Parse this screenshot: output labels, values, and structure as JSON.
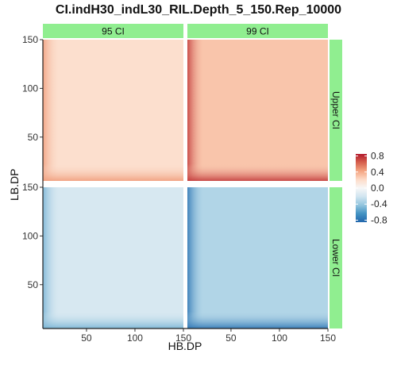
{
  "chart_data": {
    "type": "heatmap",
    "title": "CI.indH30_indL30_RIL.Depth_5_150.Rep_10000",
    "xlabel": "HB.DP",
    "ylabel": "LB.DP",
    "xlim": [
      5,
      150
    ],
    "ylim": [
      5,
      150
    ],
    "x_ticks": [
      "50",
      "100",
      "150"
    ],
    "y_ticks": [
      "50",
      "100",
      "150"
    ],
    "x_tick_values": [
      50,
      100,
      150
    ],
    "y_tick_values": [
      50,
      100,
      150
    ],
    "column_facets": [
      "95 CI",
      "99 CI"
    ],
    "row_facets": [
      "Upper CI",
      "Lower CI"
    ],
    "panels": [
      {
        "column": "95 CI",
        "row": "Upper CI",
        "value_at_max_depth": 0.18,
        "value_at_min_depth": 0.45
      },
      {
        "column": "99 CI",
        "row": "Upper CI",
        "value_at_max_depth": 0.3,
        "value_at_min_depth": 0.75
      },
      {
        "column": "95 CI",
        "row": "Lower CI",
        "value_at_max_depth": -0.18,
        "value_at_min_depth": -0.5
      },
      {
        "column": "99 CI",
        "row": "Lower CI",
        "value_at_max_depth": -0.32,
        "value_at_min_depth": -0.78
      }
    ],
    "legend": {
      "position": "right",
      "range": [
        -0.85,
        0.85
      ],
      "tick_values": [
        0.8,
        0.4,
        0.0,
        -0.4,
        -0.8
      ],
      "tick_labels": [
        "0.8",
        "0.4",
        "0.0",
        "-0.4",
        "-0.8"
      ],
      "colors": [
        "#2166ac",
        "#4393c3",
        "#92c5de",
        "#d1e5f0",
        "#f7f7f7",
        "#fddbc7",
        "#f4a582",
        "#d6604d",
        "#b2182b"
      ]
    },
    "strip_color": "#90ee90"
  }
}
